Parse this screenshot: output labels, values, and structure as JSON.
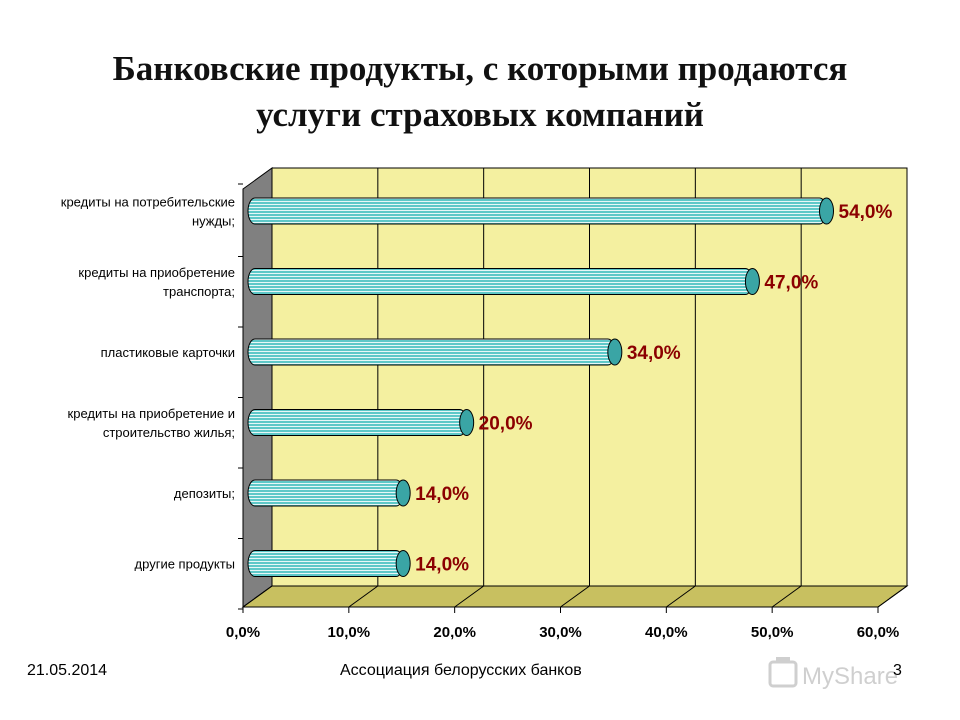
{
  "slide": {
    "title_line1": "Банковские продукты, с которыми продаются",
    "title_line2": "услуги страховых компаний"
  },
  "chart_data": {
    "type": "bar",
    "orientation": "horizontal",
    "categories": [
      [
        "кредиты на потребительские",
        "нужды;"
      ],
      [
        "кредиты на приобретение",
        "транспорта;"
      ],
      [
        "пластиковые карточки"
      ],
      [
        "кредиты на приобретение и",
        "строительство жилья;"
      ],
      [
        "депозиты;"
      ],
      [
        "другие продукты"
      ]
    ],
    "values": [
      54.0,
      47.0,
      34.0,
      20.0,
      14.0,
      14.0
    ],
    "value_labels": [
      "54,0%",
      "47,0%",
      "34,0%",
      "20,0%",
      "14,0%",
      "14,0%"
    ],
    "xlim": [
      0,
      60
    ],
    "x_ticks": [
      0,
      10,
      20,
      30,
      40,
      50,
      60
    ],
    "x_tick_labels": [
      "0,0%",
      "10,0%",
      "20,0%",
      "30,0%",
      "40,0%",
      "50,0%",
      "60,0%"
    ],
    "grid": true,
    "colors": {
      "plot_back": "#f4f0a0",
      "plot_floor": "#c8c060",
      "side_wall": "#808080",
      "bar_fill": "#5ec8c8",
      "bar_stripe": "#ffffff",
      "value_label": "#8b0000"
    }
  },
  "footer": {
    "date": "21.05.2014",
    "organization": "Ассоциация белорусских банков",
    "page": "3"
  },
  "watermark": {
    "text": "MyShared",
    "icon": "myshared-logo-icon"
  }
}
